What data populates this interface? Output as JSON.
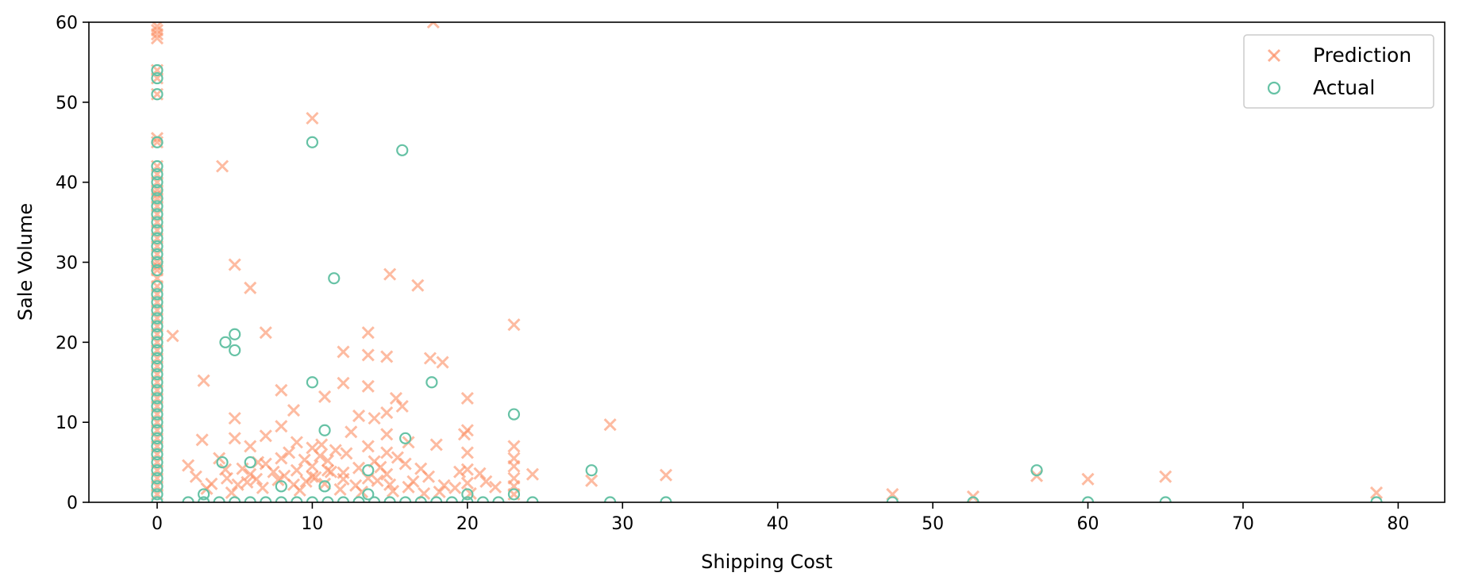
{
  "chart_data": {
    "type": "scatter",
    "title": "",
    "xlabel": "Shipping Cost",
    "ylabel": "Sale Volume",
    "xlim": [
      -4.4,
      83
    ],
    "ylim": [
      0,
      60
    ],
    "xticks": [
      0,
      10,
      20,
      30,
      40,
      50,
      60,
      70,
      80
    ],
    "yticks": [
      0,
      10,
      20,
      30,
      40,
      50,
      60
    ],
    "grid": false,
    "legend_position": "top-right",
    "series": [
      {
        "name": "Prediction",
        "marker": "x",
        "color": "#fc8d62",
        "points": [
          [
            0,
            59.5
          ],
          [
            0,
            59
          ],
          [
            0,
            58.5
          ],
          [
            0,
            58
          ],
          [
            0,
            54
          ],
          [
            0,
            53
          ],
          [
            0,
            51
          ],
          [
            0,
            45.5
          ],
          [
            0,
            45
          ],
          [
            0,
            42
          ],
          [
            0,
            41
          ],
          [
            0,
            40
          ],
          [
            0,
            39
          ],
          [
            0,
            38.5
          ],
          [
            0,
            38
          ],
          [
            0,
            37
          ],
          [
            0,
            36
          ],
          [
            0,
            35
          ],
          [
            0,
            34
          ],
          [
            0,
            33
          ],
          [
            0,
            32
          ],
          [
            0,
            31
          ],
          [
            0,
            30
          ],
          [
            0,
            29.5
          ],
          [
            0,
            29
          ],
          [
            0,
            28
          ],
          [
            0,
            27
          ],
          [
            0,
            26
          ],
          [
            0,
            25
          ],
          [
            0,
            24
          ],
          [
            0,
            23
          ],
          [
            0,
            22
          ],
          [
            0,
            21
          ],
          [
            0,
            20
          ],
          [
            0,
            19
          ],
          [
            0,
            18
          ],
          [
            0,
            17
          ],
          [
            0,
            16
          ],
          [
            0,
            15
          ],
          [
            0,
            14
          ],
          [
            0,
            13
          ],
          [
            0,
            12
          ],
          [
            0,
            11
          ],
          [
            0,
            10
          ],
          [
            0,
            9
          ],
          [
            0,
            8
          ],
          [
            0,
            7
          ],
          [
            0,
            6
          ],
          [
            0,
            5
          ],
          [
            0,
            4
          ],
          [
            0,
            3
          ],
          [
            0,
            2
          ],
          [
            0,
            1
          ],
          [
            17.8,
            60
          ],
          [
            10,
            48
          ],
          [
            4.2,
            42
          ],
          [
            5,
            29.7
          ],
          [
            6,
            26.8
          ],
          [
            7,
            21.2
          ],
          [
            1,
            20.8
          ],
          [
            15,
            28.5
          ],
          [
            16.8,
            27.1
          ],
          [
            23,
            22.2
          ],
          [
            13.6,
            21.2
          ],
          [
            12,
            18.8
          ],
          [
            13.6,
            18.4
          ],
          [
            14.8,
            18.2
          ],
          [
            17.6,
            18
          ],
          [
            18.4,
            17.5
          ],
          [
            3,
            15.2
          ],
          [
            12,
            14.9
          ],
          [
            13.6,
            14.5
          ],
          [
            10.8,
            13.2
          ],
          [
            15.4,
            13
          ],
          [
            20,
            13
          ],
          [
            15.8,
            12
          ],
          [
            8,
            14
          ],
          [
            8.8,
            11.5
          ],
          [
            14.8,
            11.2
          ],
          [
            13,
            10.8
          ],
          [
            14,
            10.5
          ],
          [
            5,
            10.5
          ],
          [
            29.2,
            9.7
          ],
          [
            19.8,
            8.5
          ],
          [
            20,
            9
          ],
          [
            2.9,
            7.8
          ],
          [
            16.2,
            7.5
          ],
          [
            23,
            7
          ],
          [
            23,
            5.5
          ],
          [
            23,
            4.5
          ],
          [
            23,
            3
          ],
          [
            23,
            2
          ],
          [
            23,
            1
          ],
          [
            24.2,
            3.5
          ],
          [
            28,
            2.7
          ],
          [
            32.8,
            3.4
          ],
          [
            47.4,
            1
          ],
          [
            52.6,
            0.7
          ],
          [
            56.7,
            3.3
          ],
          [
            60,
            2.9
          ],
          [
            65,
            3.2
          ],
          [
            78.6,
            1.2
          ],
          [
            2,
            4.6
          ],
          [
            2.5,
            3.2
          ],
          [
            3.5,
            2.3
          ],
          [
            4,
            5.5
          ],
          [
            4.5,
            3
          ],
          [
            5,
            8
          ],
          [
            5.5,
            4.2
          ],
          [
            6,
            7
          ],
          [
            6.5,
            5
          ],
          [
            7,
            8.3
          ],
          [
            7.5,
            3.8
          ],
          [
            8,
            9.5
          ],
          [
            8.5,
            6.2
          ],
          [
            9,
            7.5
          ],
          [
            9.5,
            5.3
          ],
          [
            10,
            6.8
          ],
          [
            10,
            4.5
          ],
          [
            10.5,
            5.8
          ],
          [
            11,
            4
          ],
          [
            11.5,
            6.5
          ],
          [
            12,
            3.7
          ],
          [
            12.5,
            8.8
          ],
          [
            13,
            4.3
          ],
          [
            13.6,
            7
          ],
          [
            13.6,
            3
          ],
          [
            14,
            5.1
          ],
          [
            14.8,
            8.5
          ],
          [
            14.8,
            6.2
          ],
          [
            14.8,
            3.5
          ],
          [
            15,
            2.2
          ],
          [
            15.5,
            5.6
          ],
          [
            16,
            4.8
          ],
          [
            16.5,
            2.6
          ],
          [
            17,
            4.2
          ],
          [
            17.5,
            3.2
          ],
          [
            18,
            7.2
          ],
          [
            18.5,
            2.1
          ],
          [
            19.5,
            3.8
          ],
          [
            20,
            6.2
          ],
          [
            20,
            4.1
          ],
          [
            20,
            2.4
          ],
          [
            20.8,
            3.6
          ],
          [
            21.2,
            2.6
          ],
          [
            21.8,
            1.9
          ],
          [
            3.2,
            1.7
          ],
          [
            4.8,
            1.2
          ],
          [
            5.8,
            2.5
          ],
          [
            6.8,
            1.8
          ],
          [
            7.8,
            2.8
          ],
          [
            8.8,
            2.2
          ],
          [
            9.2,
            1.5
          ],
          [
            10.2,
            3.1
          ],
          [
            10.8,
            2.3
          ],
          [
            11.8,
            1.6
          ],
          [
            12.8,
            2.1
          ],
          [
            13.2,
            1.3
          ],
          [
            14.2,
            2.7
          ],
          [
            15.2,
            1.4
          ],
          [
            16.2,
            1.9
          ],
          [
            17.2,
            1.1
          ],
          [
            18.2,
            1.3
          ],
          [
            19.2,
            1.8
          ],
          [
            20.2,
            1.1
          ],
          [
            6,
            3.5
          ],
          [
            7,
            4.8
          ],
          [
            8,
            5.5
          ],
          [
            9,
            4
          ],
          [
            10,
            3.2
          ],
          [
            11,
            5.2
          ],
          [
            12,
            2.9
          ],
          [
            9.6,
            2.6
          ],
          [
            11.2,
            3.8
          ],
          [
            8.2,
            3.3
          ],
          [
            6.4,
            2.9
          ],
          [
            5.2,
            2.2
          ],
          [
            4.4,
            4.1
          ],
          [
            10.6,
            7.2
          ],
          [
            12.2,
            6.1
          ],
          [
            14.4,
            4.4
          ]
        ]
      },
      {
        "name": "Actual",
        "marker": "o",
        "color": "#66c2a5",
        "points": [
          [
            0,
            54
          ],
          [
            0,
            53
          ],
          [
            0,
            51
          ],
          [
            0,
            45
          ],
          [
            0,
            42
          ],
          [
            0,
            41
          ],
          [
            0,
            40
          ],
          [
            0,
            39
          ],
          [
            0,
            38
          ],
          [
            0,
            37
          ],
          [
            0,
            36
          ],
          [
            0,
            35
          ],
          [
            0,
            34
          ],
          [
            0,
            33
          ],
          [
            0,
            32
          ],
          [
            0,
            31
          ],
          [
            0,
            30
          ],
          [
            0,
            29
          ],
          [
            0,
            27
          ],
          [
            0,
            26
          ],
          [
            0,
            25
          ],
          [
            0,
            24
          ],
          [
            0,
            23
          ],
          [
            0,
            22
          ],
          [
            0,
            21
          ],
          [
            0,
            20
          ],
          [
            0,
            19
          ],
          [
            0,
            18
          ],
          [
            0,
            17
          ],
          [
            0,
            16
          ],
          [
            0,
            15
          ],
          [
            0,
            14
          ],
          [
            0,
            13
          ],
          [
            0,
            12
          ],
          [
            0,
            11
          ],
          [
            0,
            10
          ],
          [
            0,
            9
          ],
          [
            0,
            8
          ],
          [
            0,
            7
          ],
          [
            0,
            6
          ],
          [
            0,
            5
          ],
          [
            0,
            4
          ],
          [
            0,
            3
          ],
          [
            0,
            2
          ],
          [
            0,
            1
          ],
          [
            0,
            0
          ],
          [
            10,
            45
          ],
          [
            15.8,
            44
          ],
          [
            11.4,
            28
          ],
          [
            5,
            21
          ],
          [
            4.4,
            20
          ],
          [
            5,
            19
          ],
          [
            10,
            15
          ],
          [
            17.7,
            15
          ],
          [
            23,
            11
          ],
          [
            10.8,
            9
          ],
          [
            16,
            8
          ],
          [
            4.2,
            5
          ],
          [
            6,
            5
          ],
          [
            28,
            4
          ],
          [
            56.7,
            4
          ],
          [
            23,
            1
          ],
          [
            3,
            1
          ],
          [
            20,
            1
          ],
          [
            13.6,
            1
          ],
          [
            13.6,
            4
          ],
          [
            8,
            2
          ],
          [
            10.8,
            2
          ],
          [
            2,
            0
          ],
          [
            3,
            0
          ],
          [
            4,
            0
          ],
          [
            5,
            0
          ],
          [
            6,
            0
          ],
          [
            7,
            0
          ],
          [
            8,
            0
          ],
          [
            9,
            0
          ],
          [
            10,
            0
          ],
          [
            11,
            0
          ],
          [
            12,
            0
          ],
          [
            13,
            0
          ],
          [
            14,
            0
          ],
          [
            15,
            0
          ],
          [
            16,
            0
          ],
          [
            17,
            0
          ],
          [
            18,
            0
          ],
          [
            19,
            0
          ],
          [
            20,
            0
          ],
          [
            21,
            0
          ],
          [
            22,
            0
          ],
          [
            24.2,
            0
          ],
          [
            29.2,
            0
          ],
          [
            32.8,
            0
          ],
          [
            47.4,
            0
          ],
          [
            52.6,
            0
          ],
          [
            60,
            0
          ],
          [
            65,
            0
          ],
          [
            78.6,
            0
          ]
        ]
      }
    ]
  }
}
